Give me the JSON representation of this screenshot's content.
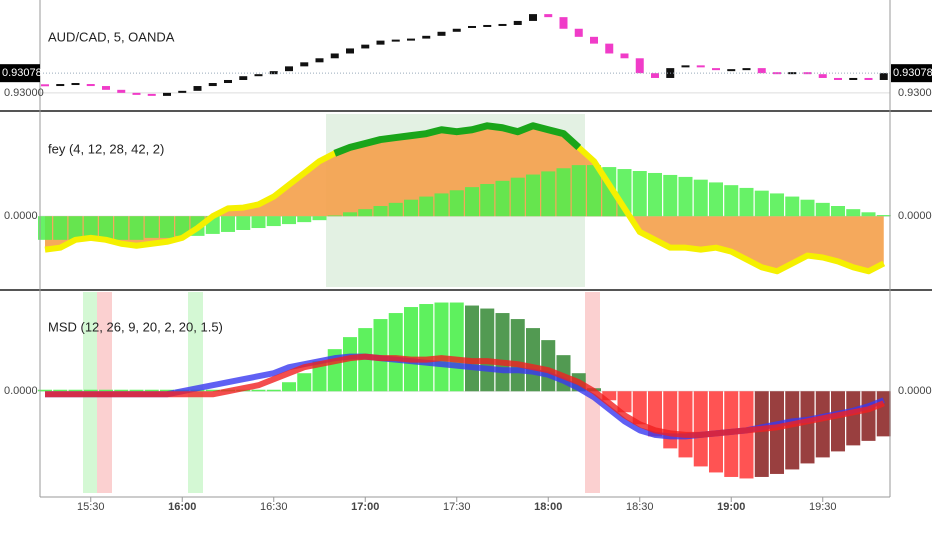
{
  "chart_data": [
    {
      "type": "candlestick",
      "title": "AUD/CAD, 5, OANDA",
      "open": [
        0.9303,
        0.93027,
        0.93031,
        0.93035,
        0.93027,
        0.93012,
        0.93,
        0.92992,
        0.92988,
        0.93,
        0.93008,
        0.93027,
        0.93039,
        0.93051,
        0.93066,
        0.93074,
        0.93086,
        0.93105,
        0.93121,
        0.93137,
        0.93156,
        0.93176,
        0.93191,
        0.93207,
        0.93207,
        0.93215,
        0.93226,
        0.93242,
        0.93254,
        0.93261,
        0.93265,
        0.93269,
        0.93285,
        0.93312,
        0.933,
        0.93254,
        0.93222,
        0.93195,
        0.93156,
        0.93137,
        0.93078,
        0.93059,
        0.93098,
        0.93105,
        0.93098,
        0.9309,
        0.9309,
        0.93098,
        0.93078,
        0.93074,
        0.93078,
        0.93074,
        0.93059,
        0.93051,
        0.93059,
        0.93051
      ],
      "close": [
        0.93027,
        0.93031,
        0.93035,
        0.93027,
        0.93012,
        0.93,
        0.92992,
        0.92988,
        0.93,
        0.93008,
        0.93027,
        0.93039,
        0.93051,
        0.93066,
        0.93074,
        0.93086,
        0.93105,
        0.93121,
        0.93137,
        0.93156,
        0.93176,
        0.93191,
        0.93207,
        0.93207,
        0.93215,
        0.93226,
        0.93242,
        0.93254,
        0.93261,
        0.93265,
        0.93269,
        0.93285,
        0.93312,
        0.933,
        0.93254,
        0.93222,
        0.93195,
        0.93156,
        0.93137,
        0.93078,
        0.93059,
        0.93098,
        0.93105,
        0.93098,
        0.9309,
        0.9309,
        0.93098,
        0.93078,
        0.93074,
        0.93078,
        0.93074,
        0.93059,
        0.93051,
        0.93059,
        0.93051,
        0.93078
      ],
      "up_color": "#111111",
      "down_color": "#f03cc8",
      "ylim": [
        0.9294,
        0.9336
      ],
      "yticks": [
        {
          "value": 0.93,
          "label": "0.93000"
        }
      ],
      "last_price": {
        "value": 0.93078,
        "label": "0.93078"
      }
    },
    {
      "type": "histogram_line",
      "title": "fey (4, 12, 28, 42, 2)",
      "histogram": {
        "color": "#4cf04c",
        "values": [
          -0.6,
          -0.6,
          -0.6,
          -0.6,
          -0.6,
          -0.6,
          -0.6,
          -0.55,
          -0.55,
          -0.5,
          -0.5,
          -0.45,
          -0.4,
          -0.35,
          -0.3,
          -0.25,
          -0.2,
          -0.15,
          -0.1,
          0.02,
          0.1,
          0.18,
          0.26,
          0.34,
          0.42,
          0.5,
          0.58,
          0.66,
          0.74,
          0.82,
          0.9,
          0.98,
          1.06,
          1.14,
          1.22,
          1.3,
          1.3,
          1.25,
          1.2,
          1.15,
          1.1,
          1.05,
          1.0,
          0.93,
          0.86,
          0.79,
          0.72,
          0.65,
          0.58,
          0.5,
          0.42,
          0.34,
          0.26,
          0.18,
          0.1,
          0.03
        ]
      },
      "line": {
        "color": "#f5f000",
        "fill": "#f4a04a",
        "values": [
          -0.85,
          -0.8,
          -0.6,
          -0.55,
          -0.6,
          -0.7,
          -0.75,
          -0.7,
          -0.65,
          -0.55,
          -0.3,
          0,
          0.2,
          0.22,
          0.3,
          0.5,
          0.8,
          1.1,
          1.4,
          1.6,
          1.75,
          1.85,
          1.95,
          2.0,
          2.05,
          2.1,
          2.2,
          2.15,
          2.2,
          2.3,
          2.25,
          2.15,
          2.3,
          2.2,
          2.1,
          1.75,
          1.4,
          0.8,
          0.2,
          -0.4,
          -0.6,
          -0.8,
          -0.8,
          -0.85,
          -0.8,
          -0.9,
          -1.1,
          -1.3,
          -1.4,
          -1.2,
          -1.0,
          -1.05,
          -1.15,
          -1.3,
          -1.4,
          -1.2
        ]
      },
      "ylim": [
        -1.8,
        2.6
      ],
      "yticks": [
        {
          "value": 0,
          "label": "0.0000"
        }
      ]
    },
    {
      "type": "histogram_lines",
      "title": "MSD (12, 26, 9, 20, 2, 20, 1.5)",
      "histogram": {
        "colors": [
          "#4cf04c",
          "#3f8f3f",
          "#ff4040",
          "#8e2a2a"
        ],
        "values": [
          0.05,
          0.05,
          0.05,
          0.05,
          0.05,
          0.05,
          0.05,
          0.05,
          0.05,
          0.05,
          0.05,
          0.05,
          0.05,
          0.05,
          0.05,
          0.05,
          0.3,
          0.6,
          1.0,
          1.4,
          1.8,
          2.1,
          2.4,
          2.6,
          2.8,
          2.9,
          2.95,
          2.95,
          2.85,
          2.75,
          2.6,
          2.4,
          2.1,
          1.7,
          1.2,
          0.6,
          0.1,
          -0.3,
          -0.7,
          -1.1,
          -1.5,
          -1.9,
          -2.2,
          -2.5,
          -2.7,
          -2.85,
          -2.9,
          -2.85,
          -2.75,
          -2.6,
          -2.4,
          -2.2,
          -2.0,
          -1.8,
          -1.65,
          -1.5
        ]
      },
      "lines": [
        {
          "color": "#3838f0",
          "values": [
            -0.1,
            -0.1,
            -0.1,
            -0.1,
            -0.1,
            -0.1,
            -0.1,
            -0.1,
            -0.1,
            0,
            0.1,
            0.2,
            0.3,
            0.4,
            0.5,
            0.6,
            0.8,
            0.9,
            1.0,
            1.1,
            1.15,
            1.15,
            1.1,
            1.05,
            1.0,
            0.95,
            0.9,
            0.85,
            0.8,
            0.75,
            0.7,
            0.7,
            0.65,
            0.55,
            0.35,
            0.1,
            -0.2,
            -0.6,
            -1.0,
            -1.3,
            -1.45,
            -1.5,
            -1.5,
            -1.45,
            -1.4,
            -1.35,
            -1.3,
            -1.2,
            -1.1,
            -1.0,
            -0.95,
            -0.85,
            -0.75,
            -0.65,
            -0.5,
            -0.3
          ]
        },
        {
          "color": "#f02020",
          "values": [
            -0.1,
            -0.1,
            -0.1,
            -0.1,
            -0.1,
            -0.1,
            -0.1,
            -0.1,
            -0.1,
            -0.1,
            -0.1,
            -0.1,
            0,
            0.1,
            0.2,
            0.4,
            0.6,
            0.8,
            0.9,
            1.0,
            1.1,
            1.15,
            1.1,
            1.1,
            1.05,
            1.05,
            1.1,
            1.05,
            1.0,
            1.0,
            0.95,
            0.9,
            0.8,
            0.7,
            0.5,
            0.3,
            0.0,
            -0.4,
            -0.8,
            -1.1,
            -1.3,
            -1.4,
            -1.45,
            -1.45,
            -1.4,
            -1.35,
            -1.3,
            -1.25,
            -1.2,
            -1.1,
            -1.0,
            -0.9,
            -0.8,
            -0.7,
            -0.6,
            -0.4
          ]
        }
      ],
      "ylim": [
        -3.45,
        3.3
      ],
      "yticks": [
        {
          "value": 0,
          "label": "0.0000"
        }
      ],
      "xtick_labels": [
        "15:30",
        "16:00",
        "16:30",
        "17:00",
        "17:30",
        "18:00",
        "18:30",
        "19:00",
        "19:30"
      ]
    }
  ]
}
